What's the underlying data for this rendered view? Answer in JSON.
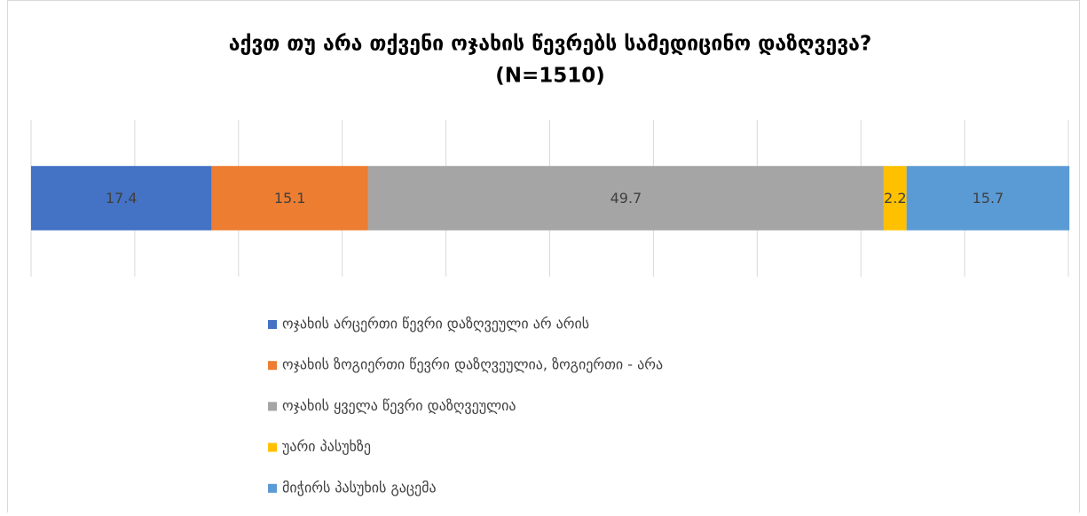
{
  "chart_data": {
    "type": "bar",
    "orientation": "horizontal",
    "stacked": true,
    "title": "აქვთ თუ არა თქვენი ოჯახის წევრებს სამედიცინო დაზღვევა?",
    "subtitle": "(N=1510)",
    "categories": [
      null
    ],
    "series": [
      {
        "name": "ოჯახის არცერთი წევრი დაზღვეული არ არის",
        "color": "#4472c4",
        "values": [
          17.4
        ]
      },
      {
        "name": "ოჯახის ზოგიერთი წევრი დაზღვეულია, ზოგიერთი - არა",
        "color": "#ed7d31",
        "values": [
          15.1
        ]
      },
      {
        "name": "ოჯახის ყველა წევრი დაზღვეულია",
        "color": "#a5a5a5",
        "values": [
          49.7
        ]
      },
      {
        "name": "უარი პასუხზე",
        "color": "#ffc000",
        "values": [
          2.2
        ]
      },
      {
        "name": "მიჭირს პასუხის გაცემა",
        "color": "#5b9bd5",
        "values": [
          15.7
        ]
      }
    ],
    "xlim": [
      0,
      100
    ],
    "xticks": [
      0,
      10,
      20,
      30,
      40,
      50,
      60,
      70,
      80,
      90,
      100
    ],
    "grid": true,
    "legend": "bottom"
  }
}
